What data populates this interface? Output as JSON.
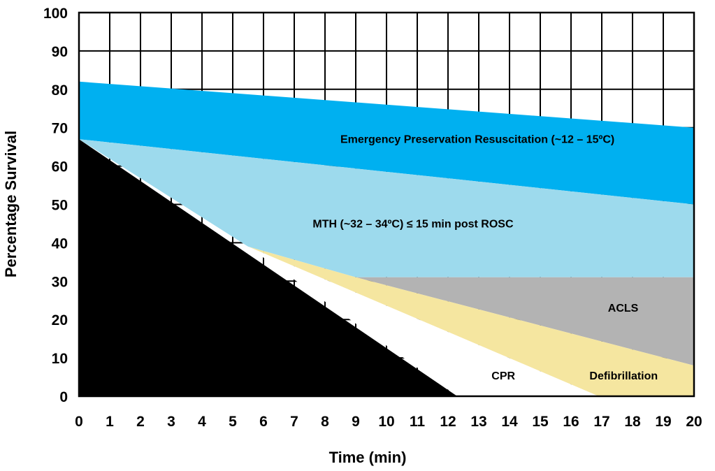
{
  "chart_data": {
    "type": "area",
    "xlabel": "Time (min)",
    "ylabel": "Percentage Survival",
    "xlim": [
      0,
      20
    ],
    "ylim": [
      0,
      100
    ],
    "x_ticks": [
      "0",
      "1",
      "2",
      "3",
      "4",
      "5",
      "6",
      "7",
      "8",
      "9",
      "10",
      "11",
      "12",
      "13",
      "14",
      "15",
      "16",
      "17",
      "18",
      "19",
      "20"
    ],
    "y_ticks": [
      "0",
      "10",
      "20",
      "30",
      "40",
      "50",
      "60",
      "70",
      "80",
      "90",
      "100"
    ],
    "grid": true,
    "bands": [
      {
        "label": "Emergency Preservation Resuscitation (~12 – 15ºC)",
        "color": "#00b0f0",
        "upper": [
          [
            0,
            82
          ],
          [
            20,
            70
          ]
        ],
        "lower": [
          [
            0,
            67
          ],
          [
            20,
            50
          ]
        ]
      },
      {
        "label": "MTH (~32 – 34ºC) ≤ 15 min post ROSC",
        "color": "#9ddaed",
        "upper": [
          [
            0,
            67
          ],
          [
            20,
            50
          ]
        ],
        "lower": [
          [
            0,
            67
          ],
          [
            5.5,
            39
          ],
          [
            9,
            31
          ],
          [
            20,
            31
          ]
        ]
      },
      {
        "label": "ACLS",
        "color": "#b3b3b3",
        "upper": [
          [
            9,
            31
          ],
          [
            20,
            31
          ]
        ],
        "lower": [
          [
            9,
            31
          ],
          [
            20,
            8
          ]
        ]
      },
      {
        "label": "Defibrillation",
        "color": "#f5e6a0",
        "upper": [
          [
            5.5,
            39
          ],
          [
            9,
            31
          ],
          [
            20,
            8
          ]
        ],
        "lower": [
          [
            5.5,
            39
          ],
          [
            16.9,
            0
          ],
          [
            20,
            0
          ]
        ]
      },
      {
        "label": "CPR",
        "color": "#ffffff",
        "upper": [
          [
            5.5,
            39
          ],
          [
            16.9,
            0
          ]
        ],
        "lower": [
          [
            5.5,
            39
          ],
          [
            12.3,
            0
          ],
          [
            16.9,
            0
          ]
        ]
      },
      {
        "label": "",
        "color": "#000000",
        "upper": [
          [
            0,
            67
          ],
          [
            12.3,
            0
          ]
        ],
        "lower": [
          [
            0,
            0
          ],
          [
            12.3,
            0
          ]
        ]
      }
    ]
  }
}
